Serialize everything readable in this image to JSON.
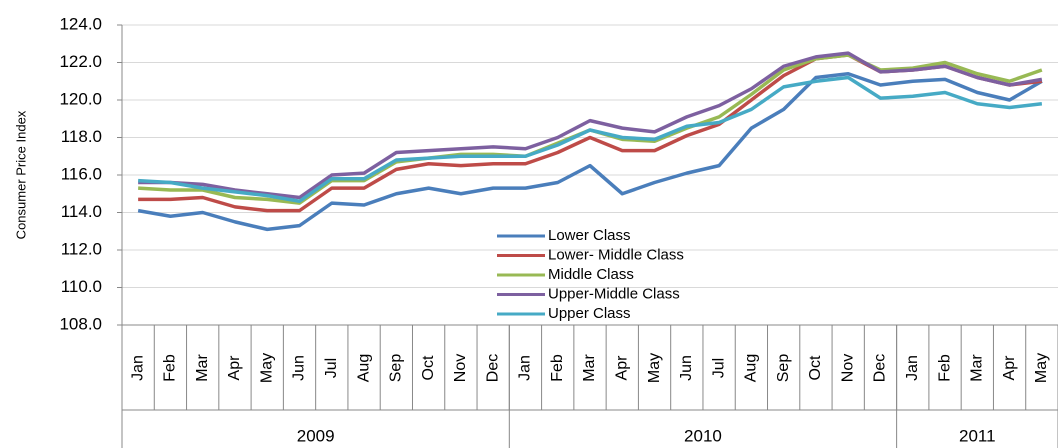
{
  "chart_data": {
    "type": "line",
    "y_label": "Consumer Price Index",
    "categories": [
      "Jan",
      "Feb",
      "Mar",
      "Apr",
      "May",
      "Jun",
      "Jul",
      "Aug",
      "Sep",
      "Oct",
      "Nov",
      "Dec",
      "Jan",
      "Feb",
      "Mar",
      "Apr",
      "May",
      "Jun",
      "Jul",
      "Aug",
      "Sep",
      "Oct",
      "Nov",
      "Dec",
      "Jan",
      "Feb",
      "Mar",
      "Apr",
      "May"
    ],
    "category_groups": [
      {
        "label": "2009",
        "span": 12
      },
      {
        "label": "2010",
        "span": 12
      },
      {
        "label": "2011",
        "span": 5
      }
    ],
    "series": [
      {
        "name": "Lower Class",
        "color": "#4a7ebb",
        "values": [
          114.1,
          113.8,
          114.0,
          113.5,
          113.1,
          113.3,
          114.5,
          114.4,
          115.0,
          115.3,
          115.0,
          115.3,
          115.3,
          115.6,
          116.5,
          115.0,
          115.6,
          116.1,
          116.5,
          118.5,
          119.5,
          121.2,
          121.4,
          120.8,
          121.0,
          121.1,
          120.4,
          120.0,
          121.0
        ]
      },
      {
        "name": "Lower- Middle Class",
        "color": "#be4b48",
        "values": [
          114.7,
          114.7,
          114.8,
          114.3,
          114.1,
          114.1,
          115.3,
          115.3,
          116.3,
          116.6,
          116.5,
          116.6,
          116.6,
          117.2,
          118.0,
          117.3,
          117.3,
          118.1,
          118.7,
          120.0,
          121.3,
          122.2,
          122.4,
          121.5,
          121.6,
          121.8,
          121.2,
          120.8,
          121.0
        ]
      },
      {
        "name": "Middle Class",
        "color": "#98b954",
        "values": [
          115.3,
          115.2,
          115.2,
          114.8,
          114.7,
          114.5,
          115.7,
          115.7,
          116.7,
          116.9,
          117.1,
          117.1,
          117.0,
          117.7,
          118.4,
          117.9,
          117.8,
          118.5,
          119.1,
          120.3,
          121.6,
          122.2,
          122.4,
          121.6,
          121.7,
          122.0,
          121.4,
          121.0,
          121.6
        ]
      },
      {
        "name": "Upper-Middle Class",
        "color": "#7d60a0",
        "values": [
          115.6,
          115.6,
          115.5,
          115.2,
          115.0,
          114.8,
          116.0,
          116.1,
          117.2,
          117.3,
          117.4,
          117.5,
          117.4,
          118.0,
          118.9,
          118.5,
          118.3,
          119.1,
          119.7,
          120.6,
          121.8,
          122.3,
          122.5,
          121.5,
          121.6,
          121.8,
          121.2,
          120.8,
          121.1
        ]
      },
      {
        "name": "Upper Class",
        "color": "#46aac5",
        "values": [
          115.7,
          115.6,
          115.3,
          115.1,
          114.9,
          114.6,
          115.8,
          115.8,
          116.8,
          116.9,
          117.0,
          117.0,
          117.0,
          117.6,
          118.4,
          118.0,
          117.9,
          118.6,
          118.8,
          119.5,
          120.7,
          121.0,
          121.2,
          120.1,
          120.2,
          120.4,
          119.8,
          119.6,
          119.8
        ]
      }
    ],
    "ylim": [
      108,
      124
    ],
    "yticks": [
      {
        "value": 108,
        "label": "108.0"
      },
      {
        "value": 110,
        "label": "110.0"
      },
      {
        "value": 112,
        "label": "112.0"
      },
      {
        "value": 114,
        "label": "114.0"
      },
      {
        "value": 116,
        "label": "116.0"
      },
      {
        "value": 118,
        "label": "118.0"
      },
      {
        "value": 120,
        "label": "120.0"
      },
      {
        "value": 122,
        "label": "122.0"
      },
      {
        "value": 124,
        "label": "124.0"
      }
    ],
    "grid": true
  }
}
